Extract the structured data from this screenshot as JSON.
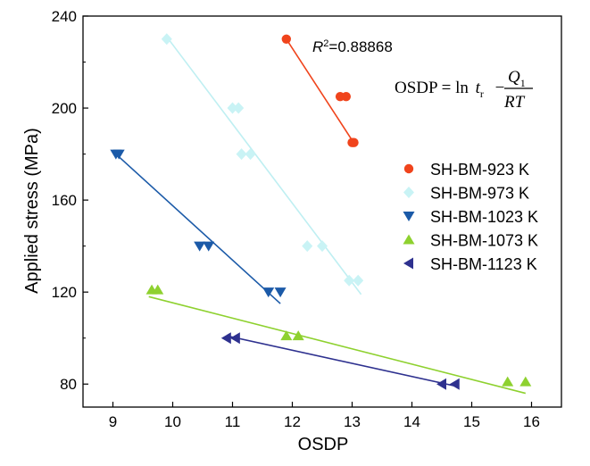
{
  "chart_data": {
    "type": "scatter",
    "xlabel": "OSDP",
    "ylabel": "Applied stress (MPa)",
    "xlim": [
      8.5,
      16.5
    ],
    "ylim": [
      70,
      240
    ],
    "x_ticks": [
      9,
      10,
      11,
      12,
      13,
      14,
      15,
      16
    ],
    "y_ticks": [
      80,
      120,
      160,
      200,
      240
    ],
    "grid": false,
    "legend_position": "right",
    "annotations": {
      "r2_label": "R",
      "r2_sup": "2",
      "r2_value": "=0.88868",
      "eq_lhs": "OSDP = ln",
      "eq_t": "t",
      "eq_t_sub": "r",
      "eq_minus": "−",
      "eq_num": "Q",
      "eq_num_sub": "1",
      "eq_den": "RT"
    },
    "series": [
      {
        "name": "SH-BM-923 K",
        "marker": "circle",
        "color": "#f0441c",
        "line_color": "#f0441c",
        "points": [
          [
            11.9,
            230
          ],
          [
            12.8,
            205
          ],
          [
            12.9,
            205
          ],
          [
            13.0,
            185
          ],
          [
            13.03,
            185
          ]
        ],
        "fit": [
          [
            11.9,
            230
          ],
          [
            13.05,
            184
          ]
        ]
      },
      {
        "name": "SH-BM-973 K",
        "marker": "diamond",
        "color": "#c9f3f5",
        "line_color": "#bfeff2",
        "points": [
          [
            9.9,
            230
          ],
          [
            11.0,
            200
          ],
          [
            11.1,
            200
          ],
          [
            11.15,
            180
          ],
          [
            11.3,
            180
          ],
          [
            12.25,
            140
          ],
          [
            12.5,
            140
          ],
          [
            12.95,
            125
          ],
          [
            13.1,
            125
          ]
        ],
        "fit": [
          [
            9.9,
            231
          ],
          [
            13.15,
            119
          ]
        ]
      },
      {
        "name": "SH-BM-1023 K",
        "marker": "triangle-down",
        "color": "#1b5aa8",
        "line_color": "#1b5aa8",
        "points": [
          [
            9.05,
            180
          ],
          [
            9.1,
            180
          ],
          [
            10.45,
            140
          ],
          [
            10.6,
            140
          ],
          [
            11.6,
            120
          ],
          [
            11.8,
            120
          ]
        ],
        "fit": [
          [
            9.05,
            180
          ],
          [
            11.8,
            115
          ]
        ]
      },
      {
        "name": "SH-BM-1073 K",
        "marker": "triangle-up",
        "color": "#8ed12f",
        "line_color": "#8ed12f",
        "points": [
          [
            9.65,
            121
          ],
          [
            9.75,
            121
          ],
          [
            11.9,
            101
          ],
          [
            12.1,
            101
          ],
          [
            15.6,
            81
          ],
          [
            15.9,
            81
          ]
        ],
        "fit": [
          [
            9.6,
            118
          ],
          [
            15.9,
            76
          ]
        ]
      },
      {
        "name": "SH-BM-1123 K",
        "marker": "triangle-left",
        "color": "#2e318f",
        "line_color": "#2e318f",
        "points": [
          [
            10.9,
            100
          ],
          [
            11.05,
            100
          ],
          [
            14.5,
            80
          ],
          [
            14.72,
            80
          ]
        ],
        "fit": [
          [
            10.9,
            101
          ],
          [
            14.75,
            79
          ]
        ]
      }
    ]
  }
}
